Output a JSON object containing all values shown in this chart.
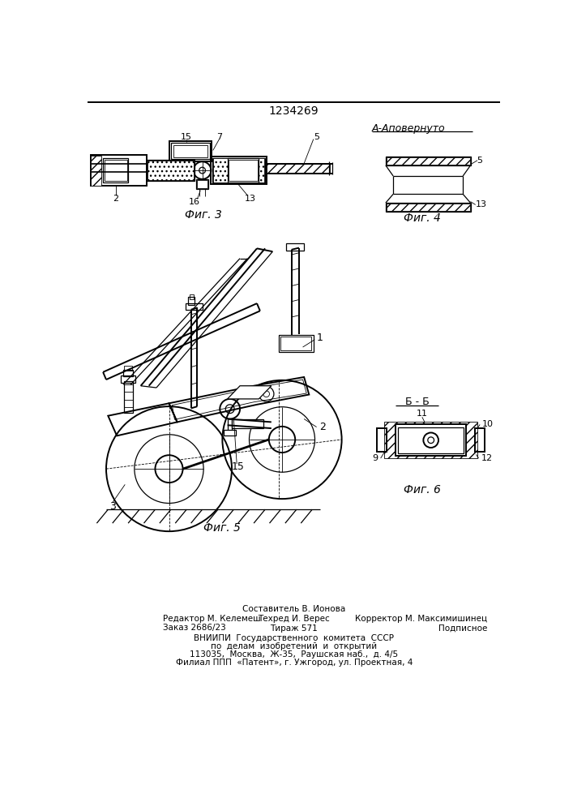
{
  "patent_number": "1234269",
  "background_color": "#ffffff",
  "fig_width": 7.07,
  "fig_height": 10.0,
  "section_label_A": "А-Аповернуто",
  "section_label_B": "Б - Б",
  "fig3_label": "Фиг. 3",
  "fig4_label": "Фиг. 4",
  "fig5_label": "Фиг. 5",
  "fig6_label": "Фиг. 6",
  "footer_lines": [
    [
      "center",
      820,
      "Составитель В. Ионова",
      7.5
    ],
    [
      "left",
      835,
      "Редактор М. Келемеш",
      7.5
    ],
    [
      "center",
      835,
      "Техред И. Верес",
      7.5
    ],
    [
      "right",
      835,
      "Корректор М. Максимишинец",
      7.5
    ],
    [
      "left",
      850,
      "Заказ 2686/23",
      7.5
    ],
    [
      "center",
      850,
      "Тираж 571",
      7.5
    ],
    [
      "right",
      850,
      "Подписное",
      7.5
    ],
    [
      "center",
      866,
      "ВНИИПИ  Государственного  комитета  СССР",
      7.5
    ],
    [
      "center",
      879,
      "по  делам  изобретений  и  открытий",
      7.5
    ],
    [
      "center",
      892,
      "113035,  Москва,  Ж-35,  Раушская наб.,  д. 4/5",
      7.5
    ],
    [
      "center",
      905,
      "Филиал ППП  «Патент», г. Ужгород, ул. Проектная, 4",
      7.5
    ]
  ]
}
